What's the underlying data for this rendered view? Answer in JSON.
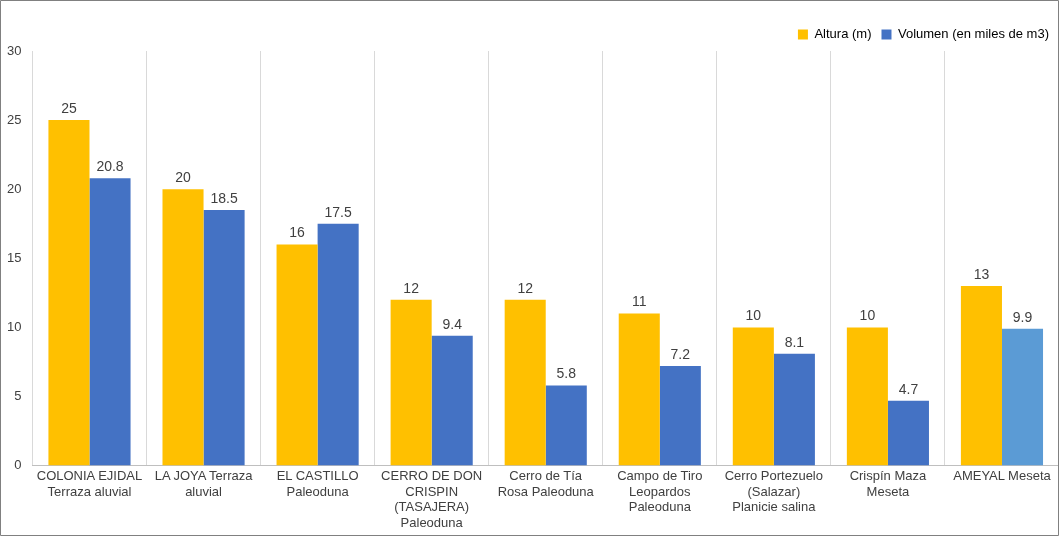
{
  "chart_data": {
    "type": "bar",
    "categories": [
      "COLONIA EJIDAL Terraza aluvial",
      "LA JOYA Terraza aluvial",
      "EL CASTILLO Paleoduna",
      "CERRO DE DON CRISPIN (TASAJERA) Paleoduna",
      "Cerro de Tía Rosa Paleoduna",
      "Campo de Tiro Leopardos Paleoduna",
      "Cerro Portezuelo (Salazar) Planicie salina",
      "Crispín Maza Meseta",
      "AMEYAL Meseta"
    ],
    "series": [
      {
        "name": "Altura (m)",
        "color": "#ffc000",
        "colors": [
          "#ffc000",
          "#ffc000",
          "#ffc000",
          "#ffc000",
          "#ffc000",
          "#ffc000",
          "#ffc000",
          "#ffc000",
          "#ffc000"
        ],
        "values": [
          25,
          20,
          16,
          12,
          12,
          11,
          10,
          10,
          13
        ]
      },
      {
        "name": "Volumen (en miles de m3)",
        "color": "#4472c4",
        "colors": [
          "#4472c4",
          "#4472c4",
          "#4472c4",
          "#4472c4",
          "#4472c4",
          "#4472c4",
          "#4472c4",
          "#4472c4",
          "#5b9bd5"
        ],
        "values": [
          20.8,
          18.5,
          17.5,
          9.4,
          5.8,
          7.2,
          8.1,
          4.7,
          9.9
        ]
      }
    ],
    "ylim": [
      0,
      30
    ],
    "yticks": [
      0,
      5,
      10,
      15,
      20,
      25,
      30
    ],
    "grid": "x",
    "legend": "top right",
    "data_labels": true
  }
}
